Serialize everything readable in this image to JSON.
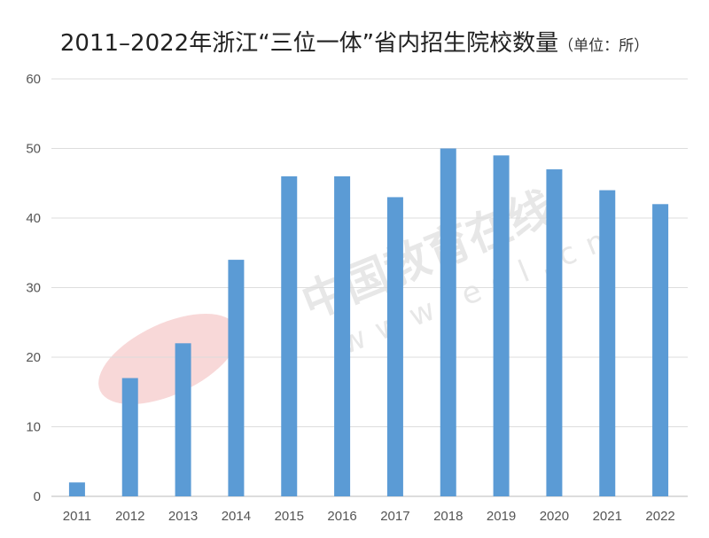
{
  "chart_data": {
    "type": "bar",
    "title": "2011–2022年浙江“三位一体”省内招生院校数量",
    "subtitle": "（单位：所）",
    "categories": [
      "2011",
      "2012",
      "2013",
      "2014",
      "2015",
      "2016",
      "2017",
      "2018",
      "2019",
      "2020",
      "2021",
      "2022"
    ],
    "values": [
      2,
      17,
      22,
      34,
      46,
      46,
      43,
      50,
      49,
      47,
      44,
      42
    ],
    "xlabel": "",
    "ylabel": "",
    "ylim": [
      0,
      60
    ],
    "yticks": [
      0,
      10,
      20,
      30,
      40,
      50,
      60
    ],
    "grid": true,
    "legend": "none",
    "bar_color": "#5b9bd5"
  },
  "watermark": {
    "logo": "eol",
    "text": "中国教育在线",
    "url": "www.eol.cn"
  }
}
